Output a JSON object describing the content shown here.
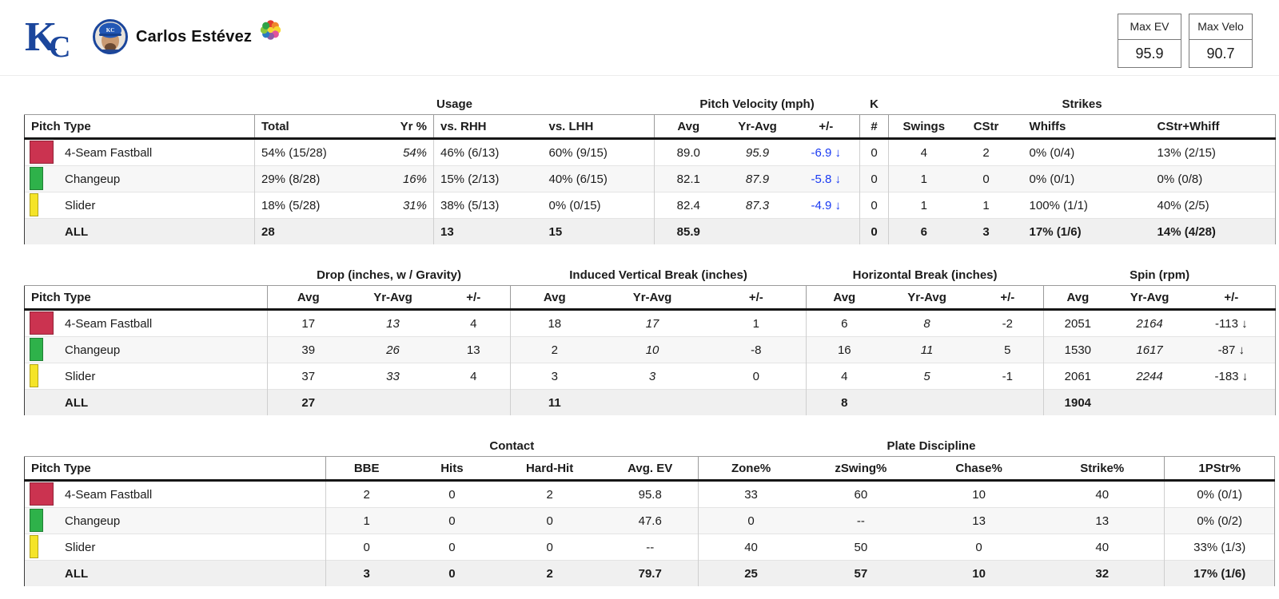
{
  "header": {
    "player_name": "Carlos Estévez",
    "team_abbr": "KC",
    "icons": {
      "team_logo": "kc-royals-monogram",
      "player_avatar": "player-headshot",
      "pitch_mix": "colored-dots-flower"
    },
    "max_ev": {
      "label": "Max EV",
      "value": "95.9"
    },
    "max_velo": {
      "label": "Max Velo",
      "value": "90.7"
    }
  },
  "colors": {
    "four_seam_red": "#cb3350",
    "changeup_green": "#2eb24a",
    "slider_yellow": "#f5e428",
    "delta_blue": "#1a3af2",
    "team_blue": "#1b469c"
  },
  "tables": [
    {
      "name": "usage-velocity-strikes",
      "groups": [
        {
          "label": "",
          "span": 1
        },
        {
          "label": "Usage",
          "span": 4
        },
        {
          "label": "Pitch Velocity (mph)",
          "span": 3
        },
        {
          "label": "K",
          "span": 1
        },
        {
          "label": "Strikes",
          "span": 4
        }
      ],
      "columns": [
        "Pitch Type",
        "Total",
        "Yr %",
        "vs. RHH",
        "vs. LHH",
        "Avg",
        "Yr-Avg",
        "+/-",
        "#",
        "Swings",
        "CStr",
        "Whiffs",
        "CStr+Whiff"
      ],
      "rows": [
        {
          "pitch": "4-Seam Fastball",
          "color": "#cb3350",
          "values": [
            "54% (15/28)",
            "54%",
            "46% (6/13)",
            "60% (9/15)",
            "89.0",
            "95.9",
            "-6.9 ↓",
            "0",
            "4",
            "2",
            "0% (0/4)",
            "13% (2/15)"
          ]
        },
        {
          "pitch": "Changeup",
          "color": "#2eb24a",
          "values": [
            "29% (8/28)",
            "16%",
            "15% (2/13)",
            "40% (6/15)",
            "82.1",
            "87.9",
            "-5.8 ↓",
            "0",
            "1",
            "0",
            "0% (0/1)",
            "0% (0/8)"
          ]
        },
        {
          "pitch": "Slider",
          "color": "#f5e428",
          "values": [
            "18% (5/28)",
            "31%",
            "38% (5/13)",
            "0% (0/15)",
            "82.4",
            "87.3",
            "-4.9 ↓",
            "0",
            "1",
            "1",
            "100% (1/1)",
            "40% (2/5)"
          ]
        }
      ],
      "all_row": {
        "label": "ALL",
        "values": [
          "28",
          "",
          "13",
          "15",
          "85.9",
          "",
          "",
          "0",
          "6",
          "3",
          "17% (1/6)",
          "14% (4/28)"
        ]
      }
    },
    {
      "name": "movement-spin",
      "groups": [
        {
          "label": "",
          "span": 1
        },
        {
          "label": "Drop (inches, w / Gravity)",
          "span": 3
        },
        {
          "label": "Induced Vertical Break (inches)",
          "span": 3
        },
        {
          "label": "Horizontal Break (inches)",
          "span": 3
        },
        {
          "label": "Spin (rpm)",
          "span": 3
        }
      ],
      "columns": [
        "Pitch Type",
        "Avg",
        "Yr-Avg",
        "+/-",
        "Avg",
        "Yr-Avg",
        "+/-",
        "Avg",
        "Yr-Avg",
        "+/-",
        "Avg",
        "Yr-Avg",
        "+/-"
      ],
      "rows": [
        {
          "pitch": "4-Seam Fastball",
          "color": "#cb3350",
          "values": [
            "17",
            "13",
            "4",
            "18",
            "17",
            "1",
            "6",
            "8",
            "-2",
            "2051",
            "2164",
            "-113 ↓"
          ]
        },
        {
          "pitch": "Changeup",
          "color": "#2eb24a",
          "values": [
            "39",
            "26",
            "13",
            "2",
            "10",
            "-8",
            "16",
            "11",
            "5",
            "1530",
            "1617",
            "-87 ↓"
          ]
        },
        {
          "pitch": "Slider",
          "color": "#f5e428",
          "values": [
            "37",
            "33",
            "4",
            "3",
            "3",
            "0",
            "4",
            "5",
            "-1",
            "2061",
            "2244",
            "-183 ↓"
          ]
        }
      ],
      "all_row": {
        "label": "ALL",
        "values": [
          "27",
          "",
          "",
          "11",
          "",
          "",
          "8",
          "",
          "",
          "1904",
          "",
          ""
        ]
      }
    },
    {
      "name": "contact-plate-discipline",
      "groups": [
        {
          "label": "",
          "span": 1
        },
        {
          "label": "Contact",
          "span": 4
        },
        {
          "label": "Plate Discipline",
          "span": 4
        },
        {
          "label": "",
          "span": 1
        }
      ],
      "columns": [
        "Pitch Type",
        "BBE",
        "Hits",
        "Hard-Hit",
        "Avg. EV",
        "Zone%",
        "zSwing%",
        "Chase%",
        "Strike%",
        "1PStr%"
      ],
      "rows": [
        {
          "pitch": "4-Seam Fastball",
          "color": "#cb3350",
          "values": [
            "2",
            "0",
            "2",
            "95.8",
            "33",
            "60",
            "10",
            "40",
            "0% (0/1)"
          ]
        },
        {
          "pitch": "Changeup",
          "color": "#2eb24a",
          "values": [
            "1",
            "0",
            "0",
            "47.6",
            "0",
            "--",
            "13",
            "13",
            "0% (0/2)"
          ]
        },
        {
          "pitch": "Slider",
          "color": "#f5e428",
          "values": [
            "0",
            "0",
            "0",
            "--",
            "40",
            "50",
            "0",
            "40",
            "33% (1/3)"
          ]
        }
      ],
      "all_row": {
        "label": "ALL",
        "values": [
          "3",
          "0",
          "2",
          "79.7",
          "25",
          "57",
          "10",
          "32",
          "17% (1/6)"
        ]
      }
    }
  ]
}
